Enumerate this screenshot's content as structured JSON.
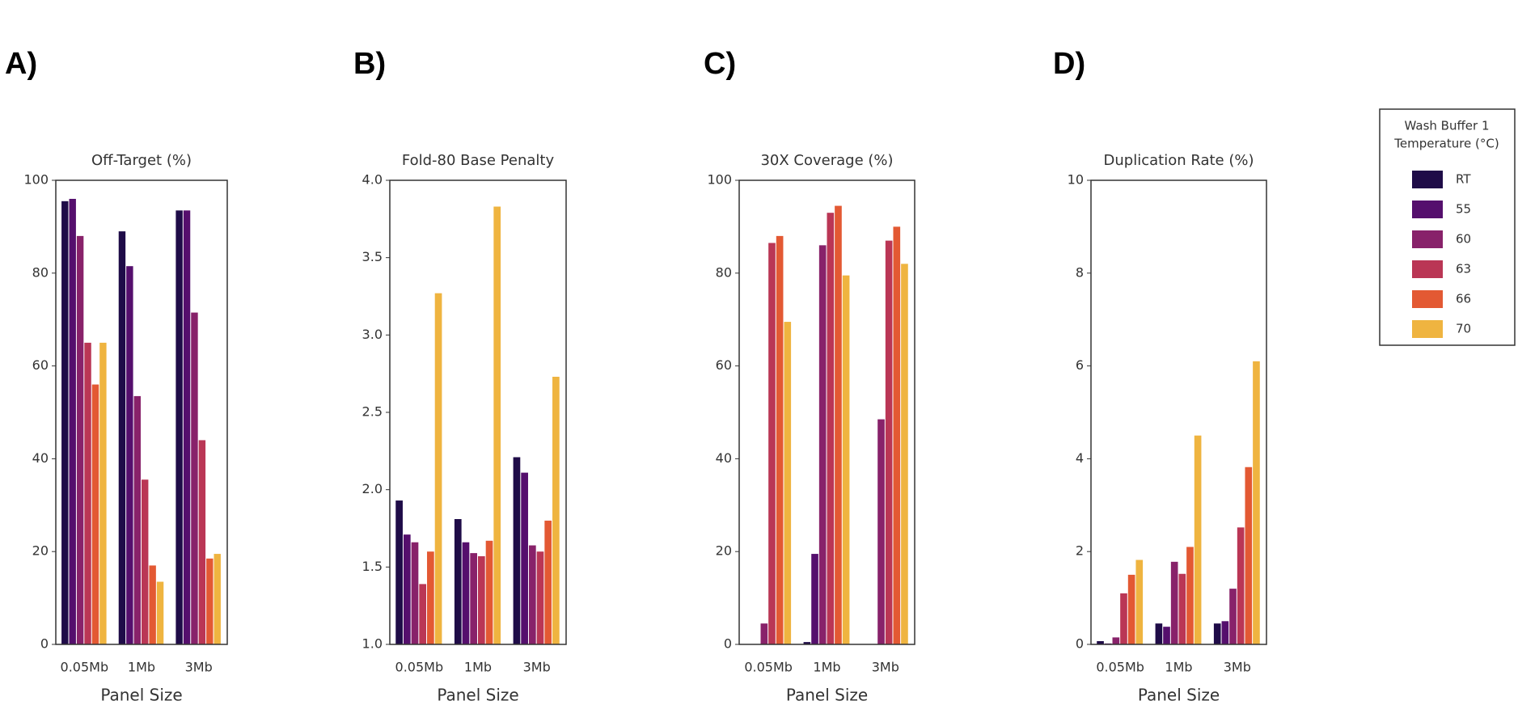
{
  "chart_data": [
    {
      "type": "bar",
      "panel_label": "A)",
      "title": "Off-Target (%)",
      "xlabel": "Panel Size",
      "categories": [
        "0.05Mb",
        "1Mb",
        "3Mb"
      ],
      "series": [
        {
          "name": "RT",
          "color": "#1f0c48",
          "values": [
            95.5,
            89,
            93.5
          ]
        },
        {
          "name": "55",
          "color": "#550f6d",
          "values": [
            96,
            81.5,
            93.5
          ]
        },
        {
          "name": "60",
          "color": "#88226a",
          "values": [
            88,
            53.5,
            71.5
          ]
        },
        {
          "name": "63",
          "color": "#ba3655",
          "values": [
            65,
            35.5,
            44
          ]
        },
        {
          "name": "66",
          "color": "#e35933",
          "values": [
            56,
            17,
            18.5
          ]
        },
        {
          "name": "70",
          "color": "#efb440",
          "values": [
            65,
            13.5,
            19.5
          ]
        }
      ],
      "ylim": [
        0,
        100
      ],
      "yticks": [
        0,
        20,
        40,
        60,
        80,
        100
      ]
    },
    {
      "type": "bar",
      "panel_label": "B)",
      "title": "Fold-80 Base Penalty",
      "xlabel": "Panel Size",
      "categories": [
        "0.05Mb",
        "1Mb",
        "3Mb"
      ],
      "series": [
        {
          "name": "RT",
          "color": "#1f0c48",
          "values": [
            1.93,
            1.81,
            2.21
          ]
        },
        {
          "name": "55",
          "color": "#550f6d",
          "values": [
            1.71,
            1.66,
            2.11
          ]
        },
        {
          "name": "60",
          "color": "#88226a",
          "values": [
            1.66,
            1.59,
            1.64
          ]
        },
        {
          "name": "63",
          "color": "#ba3655",
          "values": [
            1.39,
            1.57,
            1.6
          ]
        },
        {
          "name": "66",
          "color": "#e35933",
          "values": [
            1.6,
            1.67,
            1.8
          ]
        },
        {
          "name": "70",
          "color": "#efb440",
          "values": [
            3.27,
            3.83,
            2.73
          ]
        }
      ],
      "ylim": [
        1,
        4
      ],
      "yticks": [
        {
          "value": 1,
          "label": "1.0"
        },
        1.5,
        {
          "value": 2,
          "label": "2.0"
        },
        2.5,
        {
          "value": 3,
          "label": "3.0"
        },
        3.5,
        {
          "value": 4,
          "label": "4.0"
        }
      ]
    },
    {
      "type": "bar",
      "panel_label": "C)",
      "title": "30X Coverage (%)",
      "xlabel": "Panel Size",
      "categories": [
        "0.05Mb",
        "1Mb",
        "3Mb"
      ],
      "series": [
        {
          "name": "RT",
          "color": "#1f0c48",
          "values": [
            0,
            0.5,
            0
          ]
        },
        {
          "name": "55",
          "color": "#550f6d",
          "values": [
            0,
            19.5,
            0
          ]
        },
        {
          "name": "60",
          "color": "#88226a",
          "values": [
            4.5,
            86,
            48.5
          ]
        },
        {
          "name": "63",
          "color": "#ba3655",
          "values": [
            86.5,
            93,
            87
          ]
        },
        {
          "name": "66",
          "color": "#e35933",
          "values": [
            88,
            94.5,
            90
          ]
        },
        {
          "name": "70",
          "color": "#efb440",
          "values": [
            69.5,
            79.5,
            82
          ]
        }
      ],
      "ylim": [
        0,
        100
      ],
      "yticks": [
        0,
        20,
        40,
        60,
        80,
        100
      ]
    },
    {
      "type": "bar",
      "panel_label": "D)",
      "title": "Duplication Rate (%)",
      "xlabel": "Panel Size",
      "categories": [
        "0.05Mb",
        "1Mb",
        "3Mb"
      ],
      "series": [
        {
          "name": "RT",
          "color": "#1f0c48",
          "values": [
            0.07,
            0.45,
            0.45
          ]
        },
        {
          "name": "55",
          "color": "#550f6d",
          "values": [
            0.02,
            0.38,
            0.5
          ]
        },
        {
          "name": "60",
          "color": "#88226a",
          "values": [
            0.15,
            1.78,
            1.2
          ]
        },
        {
          "name": "63",
          "color": "#ba3655",
          "values": [
            1.1,
            1.52,
            2.52
          ]
        },
        {
          "name": "66",
          "color": "#e35933",
          "values": [
            1.5,
            2.1,
            3.82
          ]
        },
        {
          "name": "70",
          "color": "#efb440",
          "values": [
            1.82,
            4.5,
            6.1
          ]
        }
      ],
      "ylim": [
        0,
        10
      ],
      "yticks": [
        0,
        2,
        4,
        6,
        8,
        10
      ]
    }
  ],
  "legend": {
    "title_lines": [
      "Wash Buffer 1",
      "Temperature (°C)"
    ]
  }
}
